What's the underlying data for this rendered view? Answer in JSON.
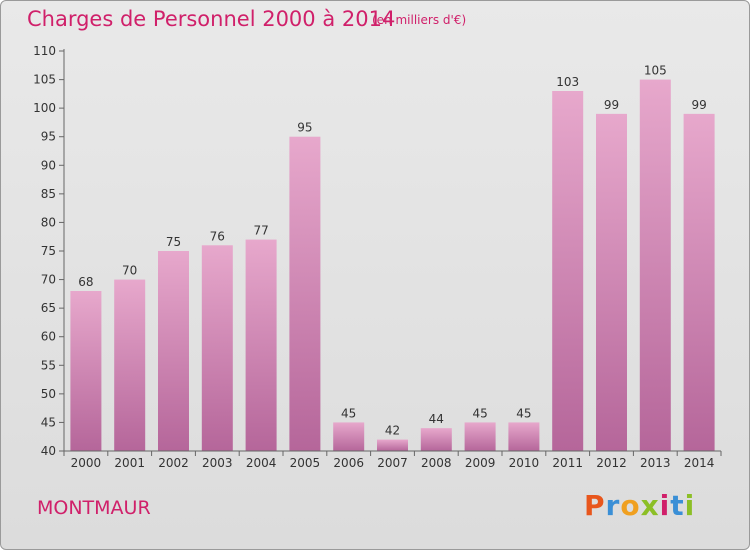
{
  "header": {
    "title": "Charges de Personnel 2000 à 2014",
    "subtitle": "(en milliers d'€)"
  },
  "footer": {
    "place": "MONTMAUR",
    "logo": "Proxiti"
  },
  "colors": {
    "title": "#d0206a",
    "bar_light": "#e7a8cc",
    "bar_dark": "#b5669a",
    "axis": "#666666"
  },
  "chart_data": {
    "type": "bar",
    "categories": [
      "2000",
      "2001",
      "2002",
      "2003",
      "2004",
      "2005",
      "2006",
      "2007",
      "2008",
      "2009",
      "2010",
      "2011",
      "2012",
      "2013",
      "2014"
    ],
    "values": [
      68,
      70,
      75,
      76,
      77,
      95,
      45,
      42,
      44,
      45,
      45,
      103,
      99,
      105,
      99
    ],
    "ylim": [
      40,
      110
    ],
    "yticks": [
      40,
      45,
      50,
      55,
      60,
      65,
      70,
      75,
      80,
      85,
      90,
      95,
      100,
      105,
      110
    ],
    "grid": false,
    "title": "Charges de Personnel 2000 à 2014",
    "subtitle": "(en milliers d'€)",
    "xlabel": "",
    "ylabel": ""
  }
}
